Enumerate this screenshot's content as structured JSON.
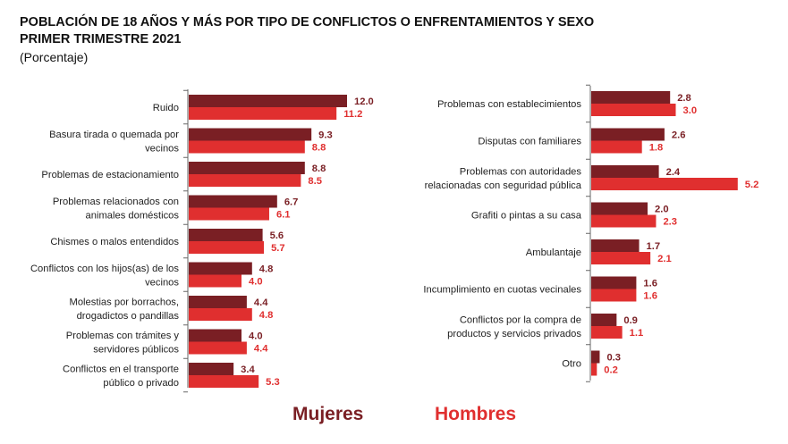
{
  "header": {
    "title_line1": "POBLACIÓN DE 18 AÑOS Y MÁS POR TIPO DE CONFLICTOS O ENFRENTAMIENTOS Y SEXO",
    "title_line2": "PRIMER TRIMESTRE 2021",
    "subtitle": "(Porcentaje)"
  },
  "colors": {
    "mujeres": "#7a1f24",
    "hombres": "#e02f2f"
  },
  "legend": {
    "mujeres": "Mujeres",
    "hombres": "Hombres"
  },
  "chart_data": [
    {
      "type": "bar",
      "orientation": "horizontal",
      "title": "",
      "categories": [
        [
          "Ruido"
        ],
        [
          "Basura tirada o quemada por",
          "vecinos"
        ],
        [
          "Problemas de estacionamiento"
        ],
        [
          "Problemas relacionados con",
          "animales domésticos"
        ],
        [
          "Chismes o malos entendidos"
        ],
        [
          "Conflictos con los hijos(as) de los",
          "vecinos"
        ],
        [
          "Molestias por borrachos,",
          "drogadictos o pandillas"
        ],
        [
          "Problemas con trámites y",
          "servidores públicos"
        ],
        [
          "Conflictos en el transporte",
          "público o privado"
        ]
      ],
      "series": [
        {
          "name": "Mujeres",
          "values": [
            12.0,
            9.3,
            8.8,
            6.7,
            5.6,
            4.8,
            4.4,
            4.0,
            3.4
          ]
        },
        {
          "name": "Hombres",
          "values": [
            11.2,
            8.8,
            8.5,
            6.1,
            5.7,
            4.0,
            4.8,
            4.4,
            5.3
          ]
        }
      ]
    },
    {
      "type": "bar",
      "orientation": "horizontal",
      "title": "",
      "categories": [
        [
          "Problemas con establecimientos"
        ],
        [
          "Disputas con familiares"
        ],
        [
          "Problemas con autoridades",
          "relacionadas con seguridad pública"
        ],
        [
          "Grafiti o pintas a su casa"
        ],
        [
          "Ambulantaje"
        ],
        [
          "Incumplimiento en cuotas vecinales"
        ],
        [
          "Conflictos por la compra de",
          "productos y servicios privados"
        ],
        [
          "Otro"
        ]
      ],
      "series": [
        {
          "name": "Mujeres",
          "values": [
            2.8,
            2.6,
            2.4,
            2.0,
            1.7,
            1.6,
            0.9,
            0.3
          ]
        },
        {
          "name": "Hombres",
          "values": [
            3.0,
            1.8,
            5.2,
            2.3,
            2.1,
            1.6,
            1.1,
            0.2
          ]
        }
      ]
    }
  ]
}
